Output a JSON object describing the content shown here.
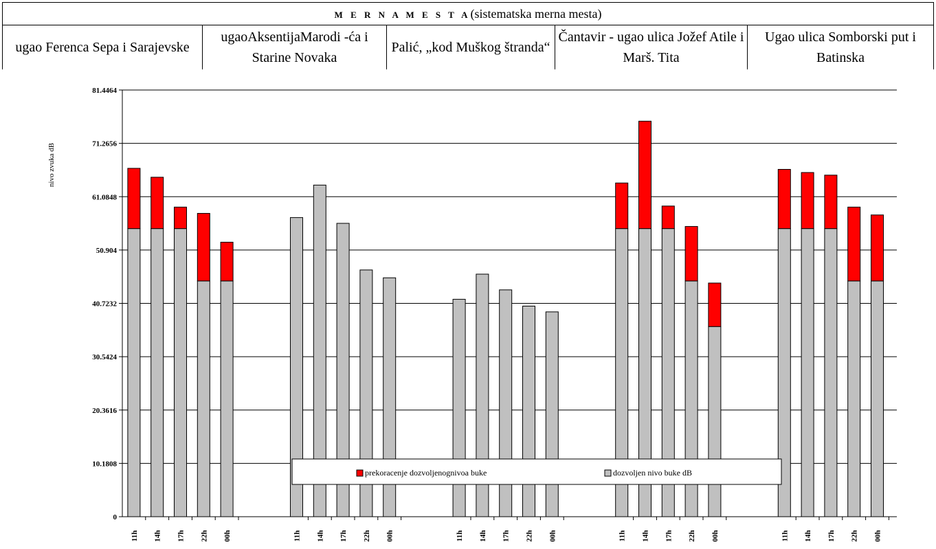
{
  "header": {
    "title_main": "M E R N A        M E S T A",
    "title_sub": "(sistematska  merna mesta)",
    "locations": [
      "ugao Ferenca Sepa i Sarajevske",
      "ugaoAksentijaMarodi -ća i Starine Novaka",
      "Palić, „kod Muškog štranda“",
      "Čantavir - ugao ulica Jožef Atile i Marš. Tita",
      "Ugao ulica Somborski put i Batinska"
    ]
  },
  "chart_data": {
    "type": "bar",
    "stacked": true,
    "ylabel": "nivo zvuka dB",
    "ylim": [
      0,
      81.4464
    ],
    "yticks": [
      "0",
      "10.1808",
      "20.3616",
      "30.5424",
      "40.7232",
      "50.904",
      "61.0848",
      "71.2656",
      "81.4464"
    ],
    "grid": true,
    "legend_position": "bottom-center",
    "groups": [
      {
        "location": "ugao Ferenca Sepa i Sarajevske",
        "categories": [
          "11h",
          "14h",
          "17h",
          "22h",
          "00h"
        ],
        "allowed": [
          55,
          55,
          55,
          45,
          45
        ],
        "exceed": [
          11.5,
          9.8,
          4.1,
          12.9,
          7.4
        ]
      },
      {
        "location": "ugaoAksentijaMarodi -ća i Starine Novaka",
        "categories": [
          "11h",
          "14h",
          "17h",
          "22h",
          "00h"
        ],
        "allowed": [
          57.1,
          63.3,
          56.0,
          47.1,
          45.6
        ],
        "exceed": [
          0,
          0,
          0,
          0,
          0
        ]
      },
      {
        "location": "Palić, „kod Muškog štranda“",
        "categories": [
          "11h",
          "14h",
          "17h",
          "22h",
          "00h"
        ],
        "allowed": [
          41.5,
          46.3,
          43.3,
          40.2,
          39.1
        ],
        "exceed": [
          0,
          0,
          0,
          0,
          0
        ]
      },
      {
        "location": "Čantavir - ugao ulica Jožef Atile i Marš. Tita",
        "categories": [
          "11h",
          "14h",
          "17h",
          "22h",
          "00h"
        ],
        "allowed": [
          55,
          55,
          55,
          45,
          36.3
        ],
        "exceed": [
          8.7,
          20.5,
          4.3,
          10.4,
          8.3
        ]
      },
      {
        "location": "Ugao ulica Somborski put i Batinska",
        "categories": [
          "11h",
          "14h",
          "17h",
          "22h",
          "00h"
        ],
        "allowed": [
          55,
          55,
          55,
          45,
          45
        ],
        "exceed": [
          11.3,
          10.7,
          10.2,
          14.1,
          12.6
        ]
      }
    ],
    "series": [
      {
        "name": "prekoracenje dozvoljenognivoa buke",
        "color": "#ff0000"
      },
      {
        "name": "dozvoljen nivo buke dB",
        "color": "#c0c0c0"
      }
    ]
  }
}
